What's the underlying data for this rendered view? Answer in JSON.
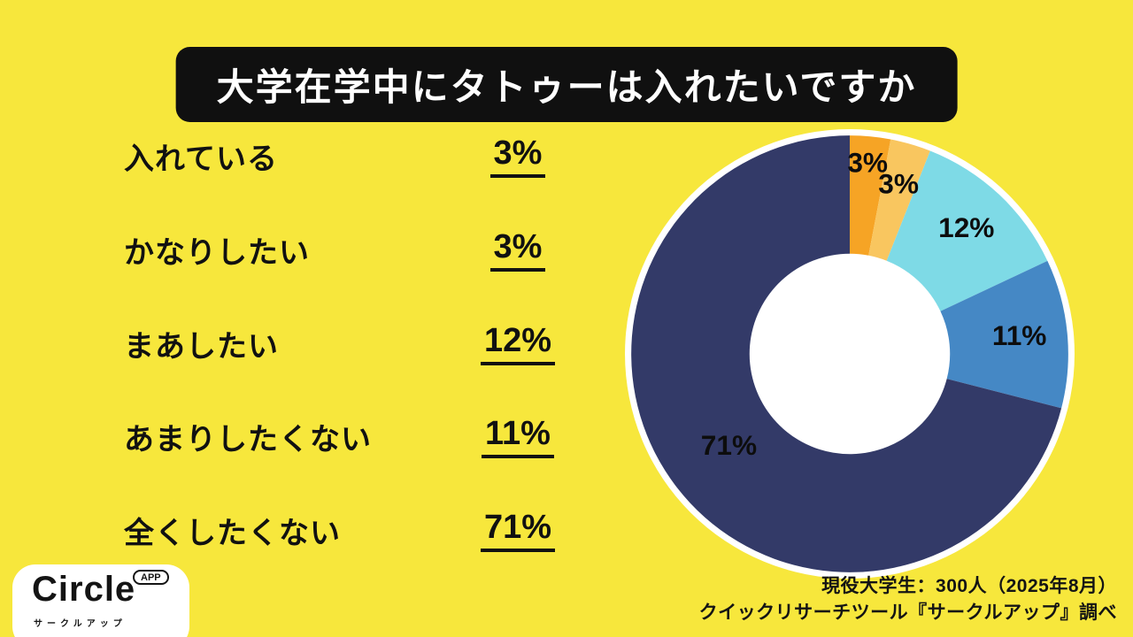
{
  "title": "大学在学中にタトゥーは入れたいですか",
  "chart_data": {
    "type": "pie",
    "donut": true,
    "title": "大学在学中にタトゥーは入れたいですか",
    "categories": [
      "入れている",
      "かなりしたい",
      "まあしたい",
      "あまりしたくない",
      "全くしたくない"
    ],
    "values": [
      3,
      3,
      12,
      11,
      71
    ],
    "unit": "%",
    "colors": [
      "#F6A425",
      "#F9C65F",
      "#7EDAE6",
      "#4588C5",
      "#333A68"
    ],
    "legend_position": "left",
    "start_angle": "top",
    "direction": "clockwise",
    "labels_on_chart": [
      "3%",
      "3%",
      "12%",
      "11%",
      "71%"
    ]
  },
  "footer": {
    "source_line1": "現役大学生：300人（2025年8月）",
    "source_line2": "クイックリサーチツール『サークルアップ』調べ"
  },
  "logo": {
    "name": "Circle",
    "badge": "APP",
    "subtitle": "サークルアップ"
  },
  "colors": {
    "background": "#F7E73C",
    "title_bg": "#101010",
    "title_text": "#FFFFFF",
    "text": "#111111",
    "chart_ring": "#FFFFFF"
  }
}
